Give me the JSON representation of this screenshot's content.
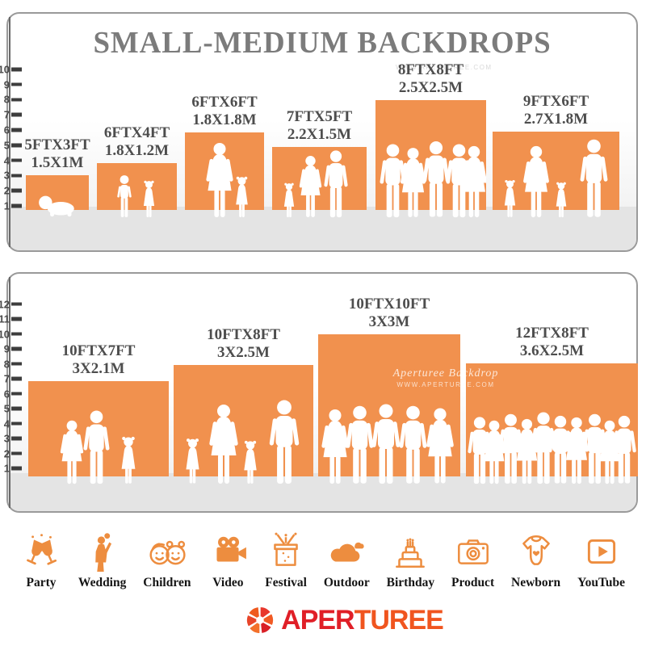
{
  "title": "SMALL-MEDIUM BACKDROPS",
  "header_watermark": "WWW.APERTUREE.COM",
  "watermark": {
    "line1": "Aperturee Backdrop",
    "line2": "WWW.APERTUREE.COM"
  },
  "panels": [
    {
      "ruler_ticks": [
        1,
        2,
        3,
        4,
        5,
        6,
        7,
        8,
        9,
        10
      ],
      "backdrops": [
        {
          "size_ft": "5FTX3FT",
          "size_m": "1.5X1M"
        },
        {
          "size_ft": "6FTX4FT",
          "size_m": "1.8X1.2M"
        },
        {
          "size_ft": "6FTX6FT",
          "size_m": "1.8X1.8M"
        },
        {
          "size_ft": "7FTX5FT",
          "size_m": "2.2X1.5M"
        },
        {
          "size_ft": "8FTX8FT",
          "size_m": "2.5X2.5M"
        },
        {
          "size_ft": "9FTX6FT",
          "size_m": "2.7X1.8M"
        }
      ]
    },
    {
      "ruler_ticks": [
        1,
        2,
        3,
        4,
        5,
        6,
        7,
        8,
        9,
        10,
        11,
        12
      ],
      "backdrops": [
        {
          "size_ft": "10FTX7FT",
          "size_m": "3X2.1M"
        },
        {
          "size_ft": "10FTX8FT",
          "size_m": "3X2.5M"
        },
        {
          "size_ft": "10FTX10FT",
          "size_m": "3X3M"
        },
        {
          "size_ft": "12FTX8FT",
          "size_m": "3.6X2.5M"
        }
      ]
    }
  ],
  "categories": [
    {
      "label": "Party"
    },
    {
      "label": "Wedding"
    },
    {
      "label": "Children"
    },
    {
      "label": "Video"
    },
    {
      "label": "Festival"
    },
    {
      "label": "Outdoor"
    },
    {
      "label": "Birthday"
    },
    {
      "label": "Product"
    },
    {
      "label": "Newborn"
    },
    {
      "label": "YouTube"
    }
  ],
  "logo": {
    "text_primary": "APER",
    "text_secondary": "TUREE"
  },
  "colors": {
    "orange": "#F1914E",
    "title_gray": "#7B7B7B",
    "label_gray": "#4D4D4D",
    "floor_gray": "#E4E4E4",
    "tick_dark": "#3D3D3D",
    "logo_red": "#E01F27",
    "logo_orange": "#F0551F",
    "icon_orange": "#ED8D3F",
    "category_text": "#151515"
  }
}
